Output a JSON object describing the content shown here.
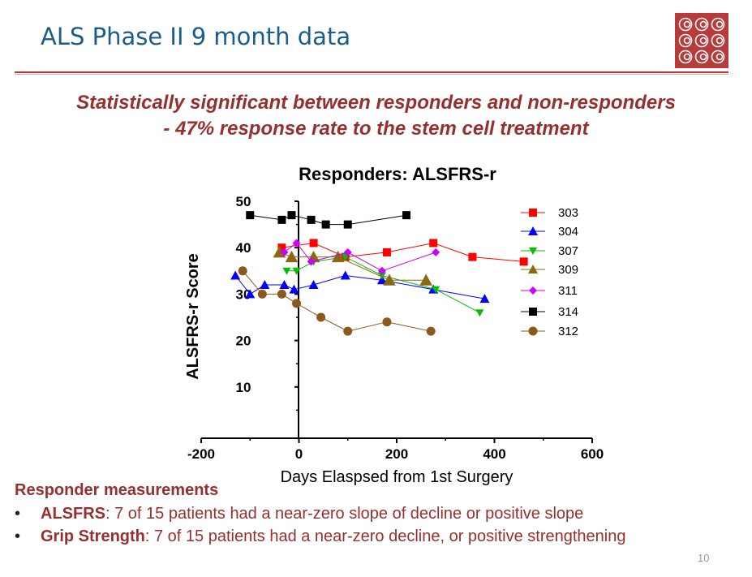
{
  "slide": {
    "title": "ALS Phase II 9 month data",
    "subtitle_line1": "Statistically significant between responders and non-responders",
    "subtitle_line2": "- 47% response rate to the stem cell treatment",
    "page_number": "10"
  },
  "bottom": {
    "heading": "Responder measurements",
    "bullets": [
      {
        "marker": "•",
        "label": "ALSFRS",
        "text": ":  7 of 15 patients had a near-zero slope of decline or positive slope"
      },
      {
        "marker": "•",
        "label": "Grip Strength",
        "text": ":  7 of 15 patients had a near-zero decline, or positive strengthening"
      }
    ]
  },
  "colors": {
    "title": "#1a5c8a",
    "accent": "#b83a3a",
    "text": "#96302f"
  },
  "chart_data": {
    "type": "line",
    "title": "Responders:  ALSFRS-r",
    "xlabel": "Days Elaspsed from 1st Surgery",
    "ylabel": "ALSFRS-r Score",
    "xlim": [
      -200,
      600
    ],
    "ylim": [
      0,
      50
    ],
    "xticks": [
      -200,
      0,
      200,
      400,
      600
    ],
    "yticks": [
      10,
      20,
      30,
      40,
      50
    ],
    "legend_position": "right",
    "series": [
      {
        "name": "303",
        "color": "#ff0000",
        "marker": "square",
        "x": [
          -35,
          30,
          95,
          180,
          275,
          355,
          460
        ],
        "y": [
          40,
          41,
          38,
          39,
          41,
          38,
          37
        ]
      },
      {
        "name": "304",
        "color": "#0000ff",
        "marker": "triangle-up",
        "x": [
          -130,
          -100,
          -70,
          -30,
          -10,
          30,
          95,
          170,
          275,
          380
        ],
        "y": [
          34,
          30,
          32,
          32,
          31,
          32,
          34,
          33,
          31,
          29
        ]
      },
      {
        "name": "307",
        "color": "#00c000",
        "marker": "triangle-down",
        "x": [
          -25,
          -5,
          30,
          95,
          170,
          280,
          370
        ],
        "y": [
          35,
          35,
          37,
          38,
          34,
          31,
          26
        ]
      },
      {
        "name": "309",
        "color": "#8b6914",
        "marker": "triangle-up",
        "x": [
          -40,
          -15,
          30,
          80,
          185,
          260
        ],
        "y": [
          39,
          38,
          38,
          38,
          33,
          33
        ]
      },
      {
        "name": "311",
        "color": "#cc00ff",
        "marker": "diamond",
        "x": [
          -30,
          -5,
          25,
          100,
          170,
          280
        ],
        "y": [
          39,
          41,
          37,
          39,
          35,
          39
        ]
      },
      {
        "name": "314",
        "color": "#000000",
        "marker": "square",
        "x": [
          -100,
          -35,
          -15,
          25,
          55,
          100,
          220
        ],
        "y": [
          47,
          46,
          47,
          46,
          45,
          45,
          47
        ]
      },
      {
        "name": "312",
        "color": "#8b5a1a",
        "marker": "circle",
        "x": [
          -115,
          -75,
          -35,
          -5,
          45,
          100,
          180,
          270
        ],
        "y": [
          35,
          30,
          30,
          28,
          25,
          22,
          24,
          22
        ]
      }
    ]
  }
}
